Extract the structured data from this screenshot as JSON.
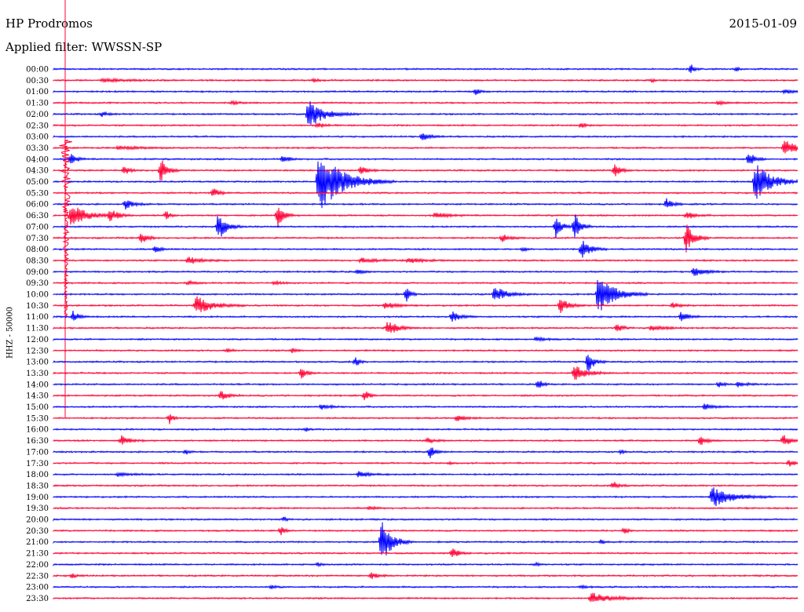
{
  "header": {
    "station": "HP Prodromos",
    "date": "2015-01-09",
    "filter": "Applied filter: WWSSN-SP"
  },
  "chart_data": {
    "type": "line",
    "title": "HP Prodromos",
    "ylabel": "HHZ - 50000",
    "colors": {
      "blue": "#0000ff",
      "red": "#ff0033"
    },
    "rows": [
      {
        "time": "00:00",
        "color": "blue",
        "events": [
          {
            "x": 880,
            "amp": 6,
            "dur": 10
          },
          {
            "x": 938,
            "amp": 3,
            "dur": 8
          }
        ]
      },
      {
        "time": "00:30",
        "color": "red",
        "events": [
          {
            "x": 130,
            "amp": 2,
            "dur": 60
          },
          {
            "x": 400,
            "amp": 2,
            "dur": 10
          },
          {
            "x": 830,
            "amp": 2,
            "dur": 10
          }
        ]
      },
      {
        "time": "01:00",
        "color": "blue",
        "events": [
          {
            "x": 606,
            "amp": 4,
            "dur": 10
          },
          {
            "x": 1000,
            "amp": 3,
            "dur": 30
          }
        ]
      },
      {
        "time": "01:30",
        "color": "red",
        "events": [
          {
            "x": 296,
            "amp": 2,
            "dur": 20
          },
          {
            "x": 915,
            "amp": 3,
            "dur": 15
          }
        ]
      },
      {
        "time": "02:00",
        "color": "blue",
        "events": [
          {
            "x": 130,
            "amp": 3,
            "dur": 15
          },
          {
            "x": 393,
            "amp": 18,
            "dur": 40
          }
        ]
      },
      {
        "time": "02:30",
        "color": "red",
        "events": [
          {
            "x": 405,
            "amp": 3,
            "dur": 20
          },
          {
            "x": 740,
            "amp": 3,
            "dur": 15
          }
        ]
      },
      {
        "time": "03:00",
        "color": "blue",
        "events": [
          {
            "x": 538,
            "amp": 5,
            "dur": 20
          }
        ]
      },
      {
        "time": "03:30",
        "color": "red",
        "events": [
          {
            "x": 150,
            "amp": 2,
            "dur": 60
          },
          {
            "x": 999,
            "amp": 10,
            "dur": 30
          }
        ]
      },
      {
        "time": "04:00",
        "color": "blue",
        "events": [
          {
            "x": 90,
            "amp": 8,
            "dur": 15
          },
          {
            "x": 360,
            "amp": 6,
            "dur": 15
          },
          {
            "x": 954,
            "amp": 10,
            "dur": 15
          }
        ]
      },
      {
        "time": "04:30",
        "color": "red",
        "events": [
          {
            "x": 158,
            "amp": 6,
            "dur": 15
          },
          {
            "x": 205,
            "amp": 18,
            "dur": 15
          },
          {
            "x": 460,
            "amp": 6,
            "dur": 15
          },
          {
            "x": 783,
            "amp": 8,
            "dur": 15
          }
        ]
      },
      {
        "time": "05:00",
        "color": "blue",
        "events": [
          {
            "x": 406,
            "amp": 40,
            "dur": 60
          },
          {
            "x": 962,
            "amp": 25,
            "dur": 40
          }
        ]
      },
      {
        "time": "05:30",
        "color": "red",
        "events": [
          {
            "x": 272,
            "amp": 6,
            "dur": 15
          }
        ]
      },
      {
        "time": "06:00",
        "color": "blue",
        "events": [
          {
            "x": 160,
            "amp": 6,
            "dur": 20
          },
          {
            "x": 849,
            "amp": 7,
            "dur": 15
          }
        ]
      },
      {
        "time": "06:30",
        "color": "red",
        "events": [
          {
            "x": 91,
            "amp": 15,
            "dur": 40
          },
          {
            "x": 140,
            "amp": 8,
            "dur": 20
          },
          {
            "x": 212,
            "amp": 6,
            "dur": 10
          },
          {
            "x": 354,
            "amp": 14,
            "dur": 15
          },
          {
            "x": 555,
            "amp": 4,
            "dur": 30
          },
          {
            "x": 875,
            "amp": 5,
            "dur": 20
          }
        ]
      },
      {
        "time": "07:00",
        "color": "blue",
        "events": [
          {
            "x": 278,
            "amp": 20,
            "dur": 20
          },
          {
            "x": 708,
            "amp": 14,
            "dur": 15
          },
          {
            "x": 732,
            "amp": 18,
            "dur": 15
          }
        ]
      },
      {
        "time": "07:30",
        "color": "red",
        "events": [
          {
            "x": 180,
            "amp": 8,
            "dur": 15
          },
          {
            "x": 640,
            "amp": 5,
            "dur": 20
          },
          {
            "x": 874,
            "amp": 20,
            "dur": 20
          }
        ]
      },
      {
        "time": "08:00",
        "color": "blue",
        "events": [
          {
            "x": 198,
            "amp": 4,
            "dur": 15
          },
          {
            "x": 741,
            "amp": 14,
            "dur": 20
          },
          {
            "x": 666,
            "amp": 3,
            "dur": 10
          }
        ]
      },
      {
        "time": "08:30",
        "color": "red",
        "events": [
          {
            "x": 240,
            "amp": 5,
            "dur": 30
          },
          {
            "x": 460,
            "amp": 3,
            "dur": 40
          },
          {
            "x": 520,
            "amp": 3,
            "dur": 40
          }
        ]
      },
      {
        "time": "09:00",
        "color": "blue",
        "events": [
          {
            "x": 455,
            "amp": 3,
            "dur": 15
          },
          {
            "x": 884,
            "amp": 7,
            "dur": 25
          }
        ]
      },
      {
        "time": "09:30",
        "color": "red",
        "events": [
          {
            "x": 240,
            "amp": 2,
            "dur": 20
          },
          {
            "x": 350,
            "amp": 2,
            "dur": 20
          }
        ]
      },
      {
        "time": "10:00",
        "color": "blue",
        "events": [
          {
            "x": 518,
            "amp": 10,
            "dur": 10
          },
          {
            "x": 630,
            "amp": 10,
            "dur": 30
          },
          {
            "x": 762,
            "amp": 25,
            "dur": 40
          }
        ]
      },
      {
        "time": "10:30",
        "color": "red",
        "events": [
          {
            "x": 250,
            "amp": 12,
            "dur": 40
          },
          {
            "x": 490,
            "amp": 4,
            "dur": 30
          },
          {
            "x": 714,
            "amp": 10,
            "dur": 20
          },
          {
            "x": 857,
            "amp": 4,
            "dur": 20
          }
        ]
      },
      {
        "time": "11:00",
        "color": "blue",
        "events": [
          {
            "x": 93,
            "amp": 8,
            "dur": 15
          },
          {
            "x": 576,
            "amp": 7,
            "dur": 20
          },
          {
            "x": 868,
            "amp": 8,
            "dur": 15
          }
        ]
      },
      {
        "time": "11:30",
        "color": "red",
        "events": [
          {
            "x": 494,
            "amp": 10,
            "dur": 25
          },
          {
            "x": 786,
            "amp": 5,
            "dur": 15
          },
          {
            "x": 830,
            "amp": 4,
            "dur": 30
          }
        ]
      },
      {
        "time": "12:00",
        "color": "blue",
        "events": [
          {
            "x": 683,
            "amp": 3,
            "dur": 20
          }
        ]
      },
      {
        "time": "12:30",
        "color": "red",
        "events": [
          {
            "x": 290,
            "amp": 3,
            "dur": 10
          },
          {
            "x": 372,
            "amp": 3,
            "dur": 10
          }
        ]
      },
      {
        "time": "13:00",
        "color": "blue",
        "events": [
          {
            "x": 453,
            "amp": 6,
            "dur": 10
          },
          {
            "x": 749,
            "amp": 14,
            "dur": 15
          }
        ]
      },
      {
        "time": "13:30",
        "color": "red",
        "events": [
          {
            "x": 384,
            "amp": 7,
            "dur": 15
          },
          {
            "x": 732,
            "amp": 10,
            "dur": 30
          }
        ]
      },
      {
        "time": "14:00",
        "color": "blue",
        "events": [
          {
            "x": 686,
            "amp": 7,
            "dur": 10
          },
          {
            "x": 916,
            "amp": 4,
            "dur": 10
          },
          {
            "x": 940,
            "amp": 4,
            "dur": 20
          }
        ]
      },
      {
        "time": "14:30",
        "color": "red",
        "events": [
          {
            "x": 281,
            "amp": 6,
            "dur": 20
          },
          {
            "x": 465,
            "amp": 7,
            "dur": 10
          }
        ]
      },
      {
        "time": "15:00",
        "color": "blue",
        "events": [
          {
            "x": 410,
            "amp": 4,
            "dur": 20
          },
          {
            "x": 898,
            "amp": 5,
            "dur": 20
          }
        ]
      },
      {
        "time": "15:30",
        "color": "red",
        "events": [
          {
            "x": 216,
            "amp": 7,
            "dur": 10
          },
          {
            "x": 582,
            "amp": 4,
            "dur": 20
          }
        ]
      },
      {
        "time": "16:00",
        "color": "blue",
        "events": [
          {
            "x": 390,
            "amp": 2,
            "dur": 10
          }
        ]
      },
      {
        "time": "16:30",
        "color": "red",
        "events": [
          {
            "x": 155,
            "amp": 6,
            "dur": 20
          },
          {
            "x": 545,
            "amp": 3,
            "dur": 20
          },
          {
            "x": 892,
            "amp": 7,
            "dur": 15
          },
          {
            "x": 998,
            "amp": 9,
            "dur": 15
          }
        ]
      },
      {
        "time": "17:00",
        "color": "blue",
        "events": [
          {
            "x": 548,
            "amp": 10,
            "dur": 12
          },
          {
            "x": 237,
            "amp": 3,
            "dur": 8
          },
          {
            "x": 791,
            "amp": 3,
            "dur": 8
          }
        ]
      },
      {
        "time": "17:30",
        "color": "red",
        "events": [
          {
            "x": 1005,
            "amp": 4,
            "dur": 20
          },
          {
            "x": 573,
            "amp": 2,
            "dur": 10
          }
        ]
      },
      {
        "time": "18:00",
        "color": "blue",
        "events": [
          {
            "x": 457,
            "amp": 4,
            "dur": 25
          },
          {
            "x": 150,
            "amp": 2,
            "dur": 40
          }
        ]
      },
      {
        "time": "18:30",
        "color": "red",
        "events": [
          {
            "x": 781,
            "amp": 5,
            "dur": 15
          }
        ]
      },
      {
        "time": "19:00",
        "color": "blue",
        "events": [
          {
            "x": 907,
            "amp": 14,
            "dur": 50
          }
        ]
      },
      {
        "time": "19:30",
        "color": "red",
        "events": [
          {
            "x": 470,
            "amp": 2,
            "dur": 20
          }
        ]
      },
      {
        "time": "20:00",
        "color": "blue",
        "events": [
          {
            "x": 362,
            "amp": 3,
            "dur": 8
          }
        ]
      },
      {
        "time": "20:30",
        "color": "red",
        "events": [
          {
            "x": 358,
            "amp": 5,
            "dur": 10
          },
          {
            "x": 795,
            "amp": 4,
            "dur": 10
          }
        ]
      },
      {
        "time": "21:00",
        "color": "blue",
        "events": [
          {
            "x": 486,
            "amp": 30,
            "dur": 25
          },
          {
            "x": 765,
            "amp": 3,
            "dur": 10
          }
        ]
      },
      {
        "time": "21:30",
        "color": "red",
        "events": [
          {
            "x": 576,
            "amp": 8,
            "dur": 15
          }
        ]
      },
      {
        "time": "22:00",
        "color": "blue",
        "events": [
          {
            "x": 405,
            "amp": 2,
            "dur": 10
          },
          {
            "x": 683,
            "amp": 2,
            "dur": 10
          }
        ]
      },
      {
        "time": "22:30",
        "color": "red",
        "events": [
          {
            "x": 473,
            "amp": 5,
            "dur": 15
          },
          {
            "x": 92,
            "amp": 3,
            "dur": 10
          }
        ]
      },
      {
        "time": "23:00",
        "color": "blue",
        "events": [
          {
            "x": 345,
            "amp": 2,
            "dur": 15
          },
          {
            "x": 740,
            "amp": 2,
            "dur": 15
          }
        ]
      },
      {
        "time": "23:30",
        "color": "red",
        "events": [
          {
            "x": 753,
            "amp": 7,
            "dur": 50
          }
        ]
      }
    ],
    "large_event": {
      "row": 7,
      "x": 84,
      "color": "red",
      "amp": 45,
      "duration_rows": 8
    }
  }
}
